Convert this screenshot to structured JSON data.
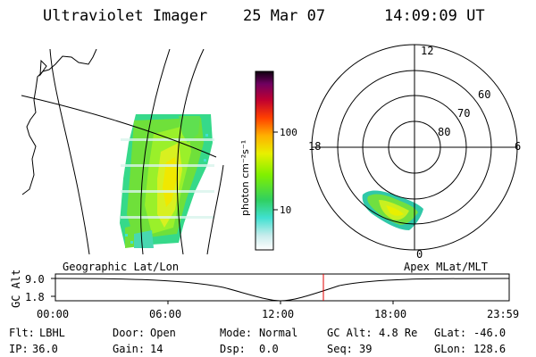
{
  "header": {
    "title": "Ultraviolet Imager",
    "date": "25 Mar 07",
    "time": "14:09:09 UT"
  },
  "panels": {
    "geo_label": "Geographic Lat/Lon",
    "apex_label": "Apex MLat/MLT"
  },
  "colorbar": {
    "unit": "photon cm⁻²s⁻¹",
    "ticks": [
      "100",
      "10"
    ],
    "scale": "log"
  },
  "polar": {
    "mlt_labels": [
      "12",
      "18",
      "6",
      "0"
    ],
    "lat_labels": [
      "60",
      "70",
      "80"
    ]
  },
  "altitude_plot": {
    "ylabel": "GC Alt",
    "y_ticks": [
      "9.0",
      "1.8"
    ],
    "x_ticks": [
      "00:00",
      "06:00",
      "12:00",
      "18:00",
      "23:59"
    ],
    "current_time_marker_color": "#e00000"
  },
  "info": {
    "row1": [
      {
        "k": "Flt:",
        "v": "LBHL"
      },
      {
        "k": "Door:",
        "v": "Open"
      },
      {
        "k": "Mode:",
        "v": "Normal"
      },
      {
        "k": "GC Alt:",
        "v": "4.8 Re"
      },
      {
        "k": "GLat:",
        "v": "-46.0"
      }
    ],
    "row2": [
      {
        "k": "IP:",
        "v": "36.0"
      },
      {
        "k": "Gain:",
        "v": "14"
      },
      {
        "k": "Dsp:",
        "v": "0.0"
      },
      {
        "k": "Seq:",
        "v": "39"
      },
      {
        "k": "GLon:",
        "v": "128.6"
      }
    ]
  }
}
